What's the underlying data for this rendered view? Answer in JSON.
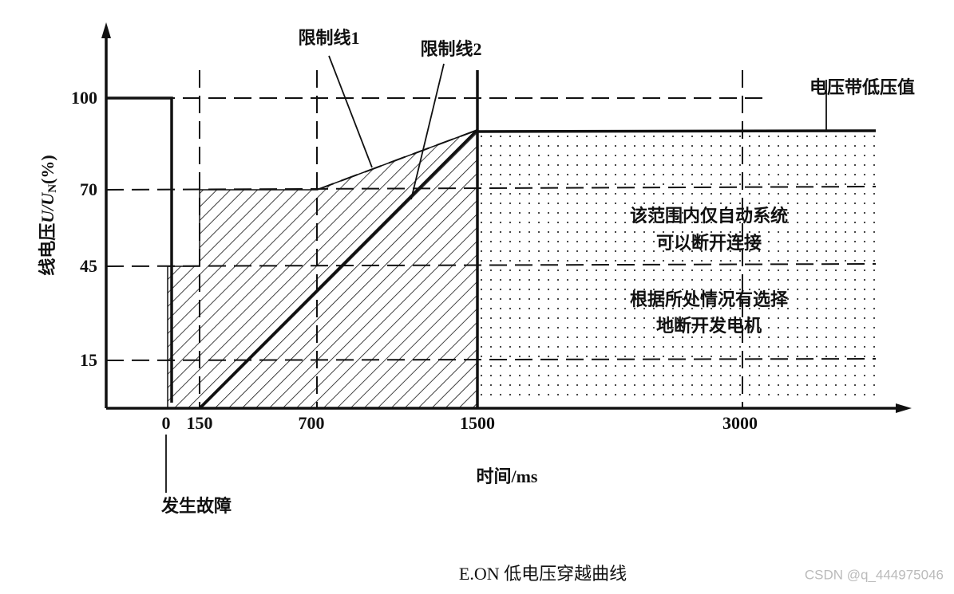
{
  "axis": {
    "y_title": {
      "prefix": "线电压",
      "var": "U/U",
      "sub": "N",
      "suffix": "(%)"
    },
    "x_title": "时间/ms",
    "y_ticks": [
      "100",
      "70",
      "45",
      "15"
    ],
    "x_ticks": [
      "0",
      "150",
      "700",
      "1500",
      "3000"
    ]
  },
  "annotations": {
    "limit_line_1": "限制线1",
    "limit_line_2": "限制线2",
    "low_voltage_value": "电压带低压值",
    "fault": "发生故障",
    "region_auto": [
      "该范围内仅自动系统",
      "可以断开连接"
    ],
    "region_select": [
      "根据所处情况有选择",
      "地断开发电机"
    ]
  },
  "caption": "E.ON 低电压穿越曲线",
  "watermark": "CSDN @q_444975046"
}
